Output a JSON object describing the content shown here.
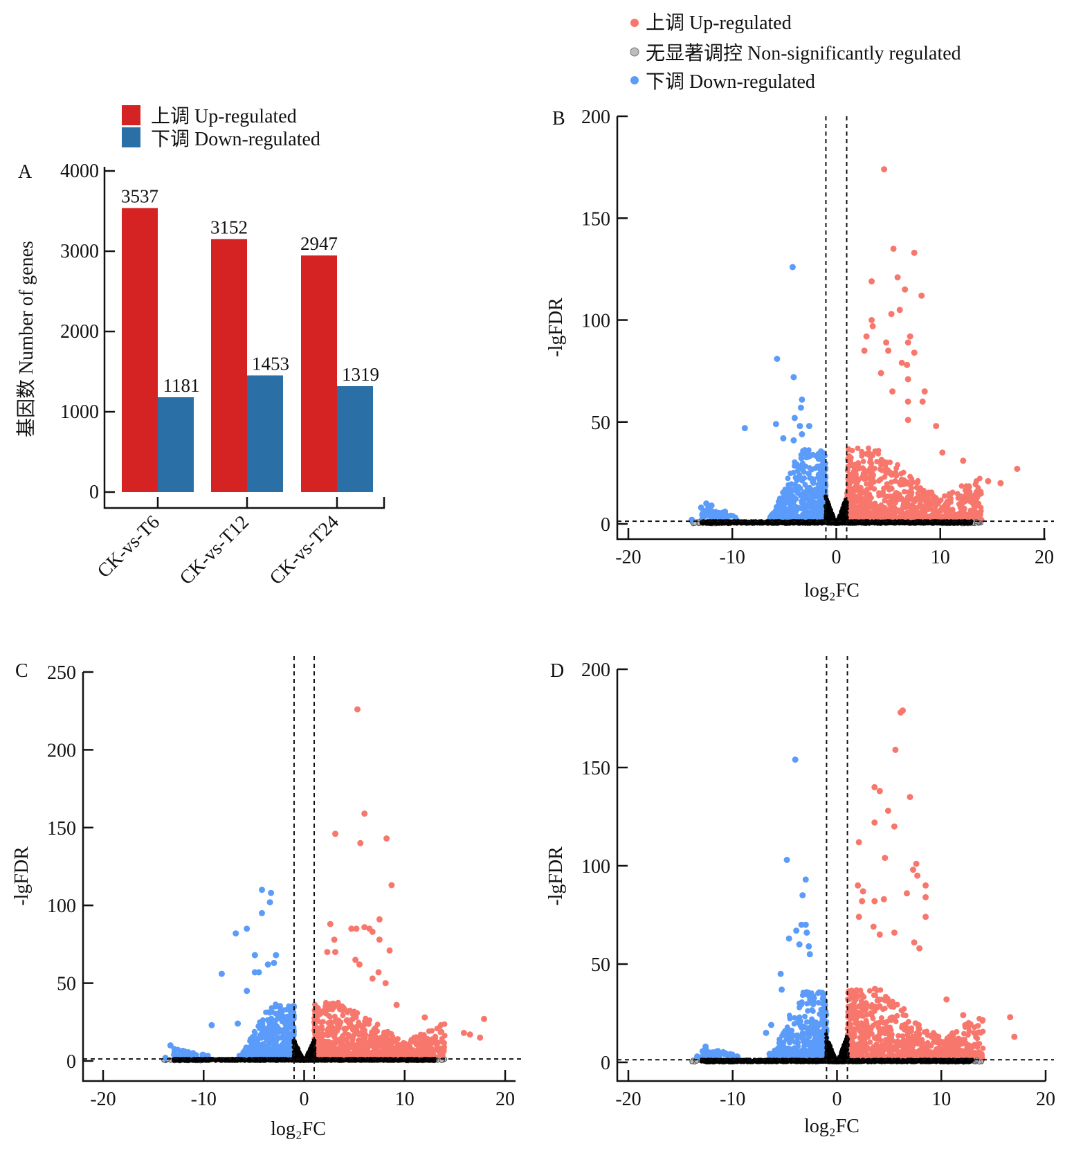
{
  "colors": {
    "bar_up": "#d42322",
    "bar_down": "#2a6fa6",
    "up": "#f8776d",
    "down": "#5b9bfa",
    "nonsig": "#bdbdbd",
    "cloud": "#000000"
  },
  "chart_data": [
    {
      "panel": "A",
      "type": "bar",
      "categories": [
        "CK-vs-T6",
        "CK-vs-T12",
        "CK-vs-T24"
      ],
      "series": [
        {
          "name": "上调 Up-regulated",
          "values": [
            3537,
            3152,
            2947
          ]
        },
        {
          "name": "下调 Down-regulated",
          "values": [
            1181,
            1453,
            1319
          ]
        }
      ],
      "data_labels": [
        [
          "3537",
          "3152",
          "2947"
        ],
        [
          "1181",
          "1453",
          "1319"
        ]
      ],
      "ylabel": "基因数 Number of genes",
      "ylim": [
        0,
        4000
      ],
      "yticks": [
        "0",
        "1000",
        "2000",
        "3000",
        "4000"
      ],
      "legend": "top"
    },
    {
      "panel": "B",
      "type": "scatter",
      "xlabel": "log₂FC",
      "ylabel": "-lgFDR",
      "xlim": [
        -20,
        20
      ],
      "ylim": [
        0,
        200
      ],
      "xticks": [
        "-20",
        "-10",
        "0",
        "10",
        "20"
      ],
      "yticks": [
        "0",
        "50",
        "100",
        "150",
        "200"
      ],
      "thresholds": {
        "log2FC": [
          -1,
          1
        ],
        "lgFDR": 1.3
      },
      "legend": "top",
      "legend_entries": [
        "上调 Up-regulated",
        "无显著调控 Non-significantly regulated",
        "下调 Down-regulated"
      ],
      "up": [
        [
          4.6,
          174
        ],
        [
          5.5,
          135
        ],
        [
          7.5,
          133
        ],
        [
          3.4,
          119
        ],
        [
          5.9,
          121
        ],
        [
          6.6,
          115
        ],
        [
          8.2,
          112
        ],
        [
          5.3,
          103
        ],
        [
          6.1,
          105
        ],
        [
          3.4,
          100
        ],
        [
          3.5,
          97
        ],
        [
          2.9,
          92
        ],
        [
          4.8,
          89
        ],
        [
          6.9,
          89
        ],
        [
          7.1,
          92
        ],
        [
          7.5,
          84
        ],
        [
          5.0,
          85
        ],
        [
          2.7,
          85
        ],
        [
          6.3,
          79
        ],
        [
          6.8,
          78
        ],
        [
          6.9,
          71
        ],
        [
          4.3,
          74
        ],
        [
          5.4,
          65
        ],
        [
          8.5,
          65
        ],
        [
          8.3,
          60
        ],
        [
          6.9,
          60
        ],
        [
          9.6,
          48
        ],
        [
          6.9,
          51
        ],
        [
          10.2,
          35
        ],
        [
          12.2,
          31
        ],
        [
          17.4,
          27
        ],
        [
          15.8,
          20
        ],
        [
          14.6,
          21
        ]
      ],
      "down": [
        [
          -4.2,
          126
        ],
        [
          -5.7,
          81
        ],
        [
          -4.1,
          72
        ],
        [
          -3.3,
          61
        ],
        [
          -3.4,
          57
        ],
        [
          -4.0,
          52
        ],
        [
          -8.8,
          47
        ],
        [
          -5.8,
          49
        ],
        [
          -3.5,
          48
        ],
        [
          -2.6,
          48
        ],
        [
          -3.3,
          44
        ],
        [
          -5.1,
          42
        ],
        [
          -4.1,
          41
        ],
        [
          -12.5,
          10
        ],
        [
          -13.0,
          8
        ],
        [
          -12.0,
          9
        ],
        [
          -10.7,
          6
        ],
        [
          -13.9,
          2
        ]
      ]
    },
    {
      "panel": "C",
      "type": "scatter",
      "xlabel": "log₂FC",
      "ylabel": "-lgFDR",
      "xlim": [
        -20,
        20
      ],
      "ylim": [
        0,
        250
      ],
      "xticks": [
        "-20",
        "-10",
        "0",
        "10",
        "20"
      ],
      "yticks": [
        "0",
        "50",
        "100",
        "150",
        "200",
        "250"
      ],
      "thresholds": {
        "log2FC": [
          -1,
          1
        ],
        "lgFDR": 1.3
      },
      "up": [
        [
          5.3,
          226
        ],
        [
          6.0,
          159
        ],
        [
          3.1,
          146
        ],
        [
          5.6,
          140
        ],
        [
          8.2,
          143
        ],
        [
          8.7,
          113
        ],
        [
          7.5,
          91
        ],
        [
          2.6,
          88
        ],
        [
          4.7,
          85
        ],
        [
          5.2,
          85
        ],
        [
          6.0,
          86
        ],
        [
          6.5,
          85
        ],
        [
          6.8,
          83
        ],
        [
          7.5,
          78
        ],
        [
          3.0,
          78
        ],
        [
          8.5,
          71
        ],
        [
          2.3,
          70
        ],
        [
          3.1,
          70
        ],
        [
          5.1,
          65
        ],
        [
          5.5,
          62
        ],
        [
          7.4,
          57
        ],
        [
          6.8,
          53
        ],
        [
          8.1,
          50
        ],
        [
          9.2,
          36
        ],
        [
          12.0,
          28
        ],
        [
          17.9,
          27
        ],
        [
          17.5,
          15
        ],
        [
          15.9,
          18
        ],
        [
          16.5,
          17
        ]
      ],
      "down": [
        [
          -4.2,
          110
        ],
        [
          -3.3,
          108
        ],
        [
          -3.4,
          102
        ],
        [
          -4.2,
          95
        ],
        [
          -6.8,
          82
        ],
        [
          -5.7,
          85
        ],
        [
          -8.2,
          56
        ],
        [
          -9.2,
          23
        ],
        [
          -2.8,
          68
        ],
        [
          -4.9,
          68
        ],
        [
          -3.0,
          63
        ],
        [
          -3.6,
          62
        ],
        [
          -4.9,
          57
        ],
        [
          -4.5,
          57
        ],
        [
          -13.3,
          10
        ],
        [
          -13.8,
          2
        ],
        [
          -6.6,
          24
        ],
        [
          -5.7,
          45
        ]
      ]
    },
    {
      "panel": "D",
      "type": "scatter",
      "xlabel": "log₂FC",
      "ylabel": "-lgFDR",
      "xlim": [
        -20,
        20
      ],
      "ylim": [
        0,
        200
      ],
      "xticks": [
        "-20",
        "-10",
        "0",
        "10",
        "20"
      ],
      "yticks": [
        "0",
        "50",
        "100",
        "150",
        "200"
      ],
      "thresholds": {
        "log2FC": [
          -1,
          1
        ],
        "lgFDR": 1.3
      },
      "up": [
        [
          6.3,
          179
        ],
        [
          6.1,
          178
        ],
        [
          5.6,
          159
        ],
        [
          3.6,
          140
        ],
        [
          4.1,
          138
        ],
        [
          7.0,
          135
        ],
        [
          4.9,
          128
        ],
        [
          3.6,
          122
        ],
        [
          5.5,
          120
        ],
        [
          2.1,
          112
        ],
        [
          4.6,
          104
        ],
        [
          7.6,
          101
        ],
        [
          7.3,
          98
        ],
        [
          7.7,
          95
        ],
        [
          8.5,
          90
        ],
        [
          2.0,
          90
        ],
        [
          2.5,
          87
        ],
        [
          6.7,
          86
        ],
        [
          8.5,
          84
        ],
        [
          3.6,
          82
        ],
        [
          4.5,
          83
        ],
        [
          2.4,
          82
        ],
        [
          2.1,
          74
        ],
        [
          8.5,
          74
        ],
        [
          3.5,
          69
        ],
        [
          5.5,
          66
        ],
        [
          4.1,
          65
        ],
        [
          7.4,
          61
        ],
        [
          7.9,
          58
        ],
        [
          16.6,
          23
        ],
        [
          17.0,
          13
        ],
        [
          10.5,
          32
        ],
        [
          12.1,
          24
        ]
      ],
      "down": [
        [
          -4.0,
          154
        ],
        [
          -4.8,
          103
        ],
        [
          -3.0,
          93
        ],
        [
          -3.3,
          85
        ],
        [
          -3.4,
          70
        ],
        [
          -3.0,
          70
        ],
        [
          -3.9,
          67
        ],
        [
          -2.9,
          66
        ],
        [
          -4.6,
          63
        ],
        [
          -3.6,
          60
        ],
        [
          -2.7,
          59
        ],
        [
          -2.6,
          55
        ],
        [
          -5.4,
          45
        ],
        [
          -5.3,
          37
        ],
        [
          -6.3,
          19
        ],
        [
          -6.8,
          15
        ],
        [
          -12.6,
          8
        ],
        [
          -13.4,
          3
        ]
      ]
    }
  ]
}
